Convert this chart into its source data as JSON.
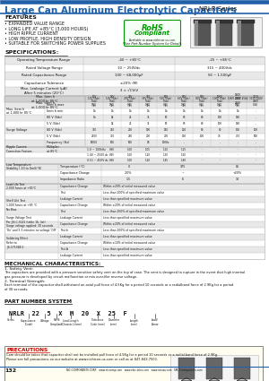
{
  "title": "Large Can Aluminum Electrolytic Capacitors",
  "series": "NRLR Series",
  "bg": "#ffffff",
  "blue": "#2060a8",
  "black": "#111111",
  "gray1": "#e8e8e8",
  "gray2": "#d0d0d0",
  "gray3": "#b8b8b8",
  "features": [
    "EXPANDED VALUE RANGE",
    "LONG LIFE AT +85°C (3,000 HOURS)",
    "HIGH RIPPLE CURRENT",
    "LOW PROFILE, HIGH DENSITY DESIGN",
    "SUITABLE FOR SWITCHING POWER SUPPLIES"
  ]
}
